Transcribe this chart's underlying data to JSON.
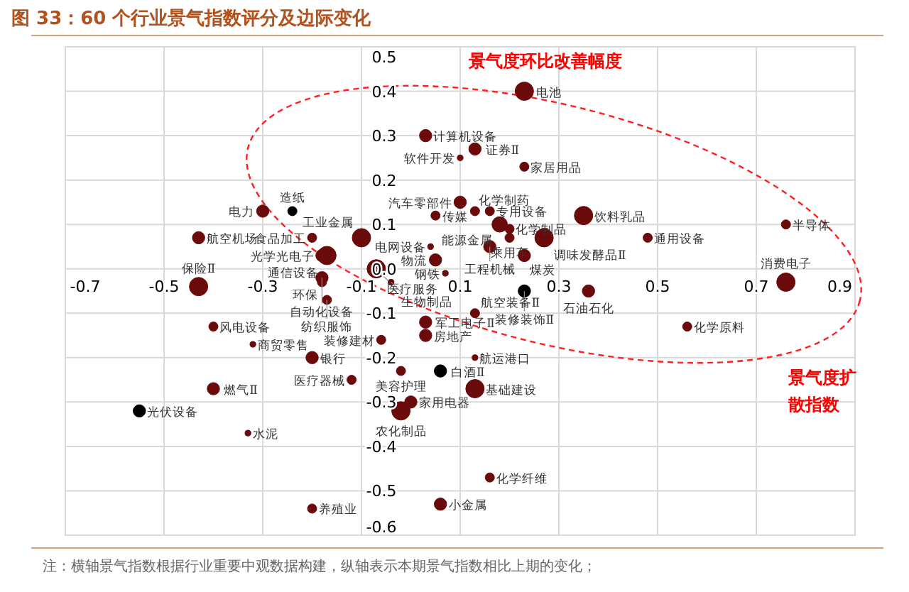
{
  "chart_data": {
    "type": "bubble",
    "title": "图 33：60 个行业景气指数评分及边际变化",
    "xlabel": "景气度扩散指数",
    "ylabel": "景气度环比改善幅度",
    "xlim": [
      -0.7,
      0.9
    ],
    "xticks": [
      -0.7,
      -0.5,
      -0.3,
      -0.1,
      0.1,
      0.3,
      0.5,
      0.7,
      0.9
    ],
    "ylim": [
      -0.6,
      0.5
    ],
    "yticks": [
      -0.6,
      -0.5,
      -0.4,
      -0.3,
      -0.2,
      -0.1,
      {
        "value": 0,
        "label": "0.0"
      },
      0.1,
      0.2,
      0.3,
      0.4,
      0.5
    ],
    "grid": true,
    "annotations": [
      "注：横轴景气指数根据行业重要中观数据构建，纵轴表示本期景气指数相比上期的变化；"
    ],
    "series": [
      {
        "color": "#6b0a0a",
        "x": [
          0.23,
          0.03,
          0.1,
          0.13,
          0.23,
          0.1,
          0.05,
          0.13,
          0.16,
          0.18,
          0.2,
          0.2,
          0.16,
          0.35,
          0.27,
          0.48,
          0.76,
          0.76,
          0.23,
          0.05,
          0.07,
          0.04,
          -0.3,
          -0.43,
          -0.1,
          -0.2,
          -0.18,
          -0.17,
          -0.07,
          -0.04,
          -0.18,
          -0.18,
          -0.17,
          -0.43,
          -0.4,
          -0.32,
          -0.2,
          -0.4,
          -0.33,
          -0.12,
          -0.06,
          -0.02,
          0.03,
          0.03,
          0.0,
          -0.02,
          0.13,
          0.36,
          0.56,
          0.13,
          0.13,
          0.16,
          0.06,
          -0.2
        ],
        "values": [
          0.4,
          0.3,
          0.25,
          0.27,
          0.23,
          0.15,
          0.12,
          0.13,
          0.13,
          0.1,
          0.09,
          0.07,
          0.05,
          0.12,
          0.07,
          0.07,
          0.1,
          -0.03,
          0.03,
          0.02,
          -0.01,
          0.05,
          0.13,
          0.07,
          0.07,
          0.07,
          0.03,
          0.03,
          0.0,
          -0.03,
          -0.02,
          -0.03,
          -0.07,
          -0.04,
          -0.13,
          -0.17,
          -0.2,
          -0.27,
          -0.37,
          -0.25,
          -0.16,
          -0.23,
          -0.15,
          -0.12,
          -0.3,
          -0.32,
          -0.1,
          -0.05,
          -0.13,
          -0.2,
          -0.27,
          -0.47,
          -0.53,
          -0.54
        ],
        "sizes": [
          1,
          0.45,
          0.1,
          0.45,
          0.25,
          0.45,
          0.25,
          0.25,
          0.25,
          0.7,
          0.25,
          0.25,
          0.45,
          1,
          1,
          0.25,
          0.25,
          1,
          0.45,
          0.45,
          0.1,
          0.1,
          0.45,
          0.45,
          1,
          0.25,
          0.45,
          1,
          1,
          0.1,
          0.45,
          0.25,
          0.25,
          1,
          0.25,
          0.1,
          0.45,
          0.45,
          0.1,
          0.25,
          0.25,
          0.25,
          0.45,
          0.45,
          0.45,
          1,
          0.25,
          0.45,
          0.25,
          0.1,
          1,
          0.25,
          0.45,
          0.25
        ],
        "value_labels": [
          "电池",
          "计算机设备",
          "软件开发",
          "证券Ⅱ",
          "家居用品",
          "汽车零部件",
          "传媒",
          "化学制药",
          "专用设备",
          "能源金属",
          "化学制品",
          "乘用车",
          "工程机械",
          "饮料乳品",
          "调味发酵品Ⅱ",
          "通用设备",
          "半导体",
          "消费电子",
          "煤炭",
          "物流",
          "钢铁",
          "电网设备",
          "电力",
          "航空机场",
          "工业金属",
          "食品加工",
          "光学光电子",
          "通信设备",
          "医疗服务",
          "生物制品",
          "自动化设备",
          "环保",
          "纺织服饰",
          "保险Ⅱ",
          "风电设备",
          "商贸零售",
          "银行",
          "燃气Ⅱ",
          "水泥",
          "医疗器械",
          "装修建材",
          "美容护理",
          "房地产",
          "军工电子Ⅱ",
          "家用电器",
          "农化制品",
          "航空装备Ⅱ",
          "石油石化",
          "化学原料",
          "航运港口",
          "基础建设",
          "化学纤维",
          "小金属",
          "养殖业"
        ]
      },
      {
        "color": "#000000",
        "x": [
          -0.24,
          0.23,
          0.06,
          -0.55
        ],
        "values": [
          0.13,
          -0.05,
          -0.23,
          -0.32
        ],
        "sizes": [
          0.25,
          0.45,
          0.45,
          0.45
        ],
        "value_labels": [
          "造纸",
          "装修装饰Ⅱ",
          "白酒Ⅱ",
          "光伏设备"
        ]
      }
    ]
  }
}
